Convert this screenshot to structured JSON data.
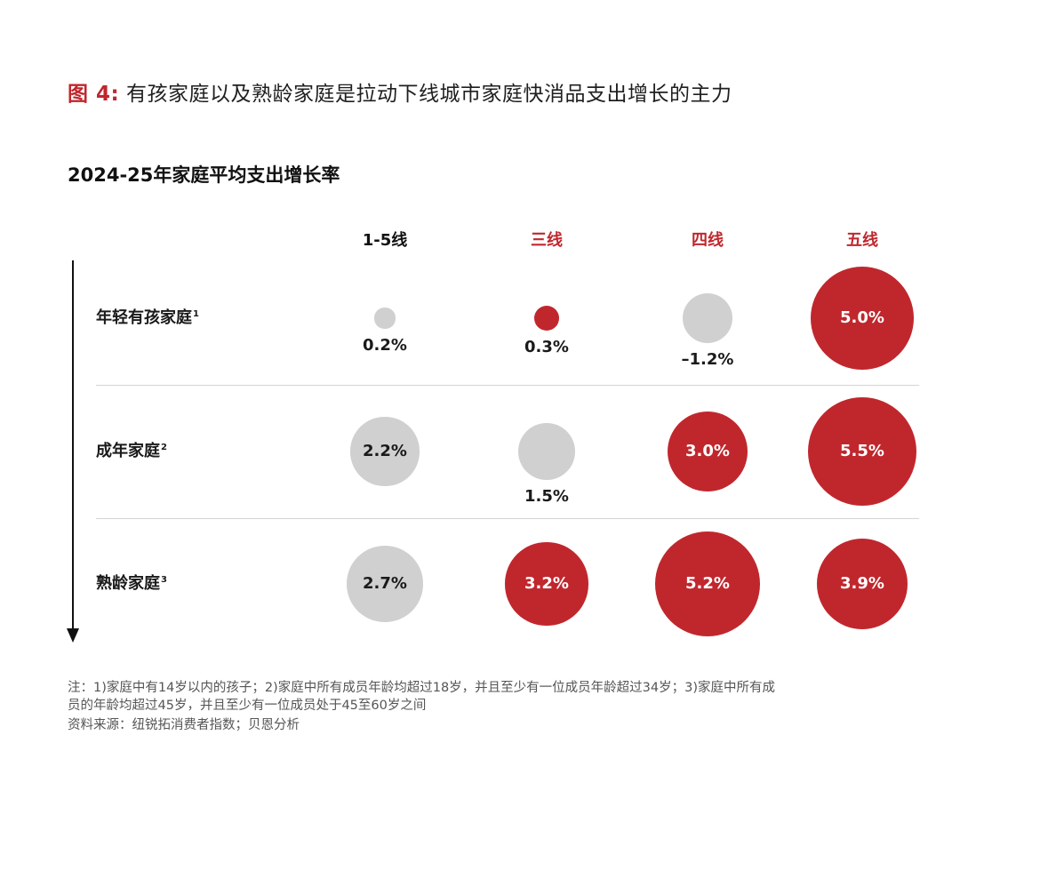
{
  "figure": {
    "label": "图 4:",
    "title": "有孩家庭以及熟龄家庭是拉动下线城市家庭快消品支出增长的主力"
  },
  "chart_data": {
    "type": "bubble-matrix",
    "title": "2024-25年家庭平均支出增长率",
    "columns": [
      "1-5线",
      "三线",
      "四线",
      "五线"
    ],
    "rows": [
      {
        "label": "年轻有孩家庭",
        "note": "1"
      },
      {
        "label": "成年家庭",
        "note": "2"
      },
      {
        "label": "熟龄家庭",
        "note": "3"
      }
    ],
    "values": [
      [
        0.2,
        0.3,
        -1.2,
        5.0
      ],
      [
        2.2,
        1.5,
        3.0,
        5.5
      ],
      [
        2.7,
        3.2,
        5.2,
        3.9
      ]
    ],
    "value_labels": [
      [
        "0.2%",
        "0.3%",
        "–1.2%",
        "5.0%"
      ],
      [
        "2.2%",
        "1.5%",
        "3.0%",
        "5.5%"
      ],
      [
        "2.7%",
        "3.2%",
        "5.2%",
        "3.9%"
      ]
    ],
    "highlight": [
      [
        false,
        true,
        false,
        true
      ],
      [
        false,
        false,
        true,
        true
      ],
      [
        false,
        true,
        true,
        true
      ]
    ],
    "colors": {
      "highlight": "#c0272d",
      "neutral": "#d0d0d0",
      "header_default": "#111111"
    }
  },
  "footnotes": {
    "note_line1": "注：1)家庭中有14岁以内的孩子；2)家庭中所有成员年龄均超过18岁，并且至少有一位成员年龄超过34岁；3)家庭中所有成",
    "note_line2": "员的年龄均超过45岁，并且至少有一位成员处于45至60岁之间",
    "source": "资料来源：纽锐拓消费者指数；贝恩分析"
  }
}
